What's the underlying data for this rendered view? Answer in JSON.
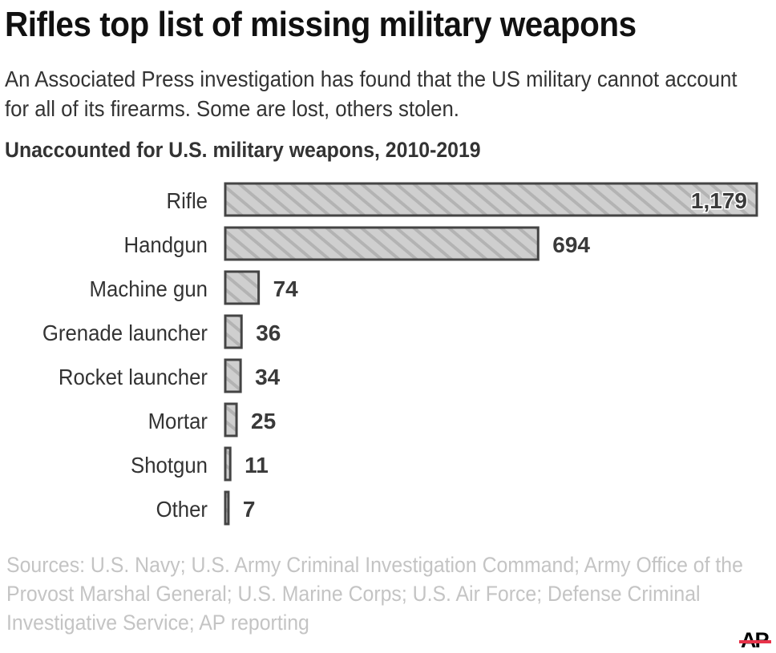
{
  "header": {
    "title": "Rifles top list of missing military weapons",
    "subtitle": "An Associated Press investigation has found that the US military cannot account for all of its firearms. Some are lost, others stolen."
  },
  "chart_data": {
    "type": "bar",
    "orientation": "horizontal",
    "title": "Unaccounted for U.S. military weapons, 2010-2019",
    "categories": [
      "Rifle",
      "Handgun",
      "Machine gun",
      "Grenade launcher",
      "Rocket launcher",
      "Mortar",
      "Shotgun",
      "Other"
    ],
    "values": [
      1179,
      694,
      74,
      36,
      34,
      25,
      11,
      7
    ],
    "value_labels": [
      "1,179",
      "694",
      "74",
      "36",
      "34",
      "25",
      "11",
      "7"
    ],
    "bar_fill": "#cfcfcf",
    "bar_hatch": "#b3b3b3",
    "bar_stroke": "#444444",
    "grid": false
  },
  "footer": {
    "source": "Sources: U.S. Navy; U.S. Army Criminal Investigation Command; Army Office of  the Provost Marshal General; U.S. Marine Corps; U.S. Air Force; Defense Criminal Investigative Service; AP reporting",
    "logo": "AP",
    "logo_accent": "#e8334a"
  }
}
